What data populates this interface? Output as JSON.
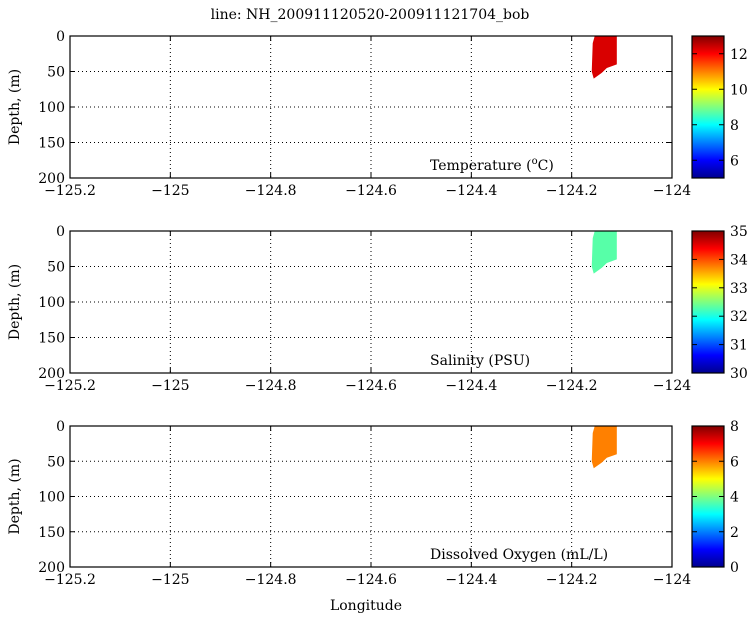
{
  "figure": {
    "title": "line: NH_200911120520-200911121704_bob",
    "xlabel": "Longitude",
    "ylabel": "Depth, (m)"
  },
  "chart_data": [
    {
      "type": "heatmap",
      "variable": "Temperature",
      "annotation": {
        "prefix": "Temperature (",
        "sup": "o",
        "suffix": "C)"
      },
      "xlim": [
        -125.2,
        -124
      ],
      "ylim": [
        200,
        0
      ],
      "y_inverted": true,
      "x_ticks": [
        "−125.2",
        "−125",
        "−124.8",
        "−124.6",
        "−124.4",
        "−124.2",
        "−124"
      ],
      "x_tick_values": [
        -125.2,
        -125,
        -124.8,
        -124.6,
        -124.4,
        -124.2,
        -124
      ],
      "y_ticks": [
        "0",
        "50",
        "100",
        "150",
        "200"
      ],
      "y_tick_values": [
        0,
        50,
        100,
        150,
        200
      ],
      "grid": true,
      "colorbar": {
        "range": [
          5,
          13
        ],
        "ticks": [
          "6",
          "8",
          "10",
          "12"
        ],
        "tick_values": [
          6,
          8,
          10,
          12
        ],
        "colormap": "jet"
      },
      "data_region": {
        "lon_range": [
          -124.16,
          -124.11
        ],
        "depth_range": [
          0,
          60
        ],
        "value": 12.3
      }
    },
    {
      "type": "heatmap",
      "variable": "Salinity",
      "annotation": {
        "prefix": "Salinity (PSU)",
        "sup": "",
        "suffix": ""
      },
      "xlim": [
        -125.2,
        -124
      ],
      "ylim": [
        200,
        0
      ],
      "y_inverted": true,
      "x_ticks": [
        "−125.2",
        "−125",
        "−124.8",
        "−124.6",
        "−124.4",
        "−124.2",
        "−124"
      ],
      "x_tick_values": [
        -125.2,
        -125,
        -124.8,
        -124.6,
        -124.4,
        -124.2,
        -124
      ],
      "y_ticks": [
        "0",
        "50",
        "100",
        "150",
        "200"
      ],
      "y_tick_values": [
        0,
        50,
        100,
        150,
        200
      ],
      "grid": true,
      "colorbar": {
        "range": [
          30,
          35
        ],
        "ticks": [
          "30",
          "31",
          "32",
          "33",
          "34",
          "35"
        ],
        "tick_values": [
          30,
          31,
          32,
          33,
          34,
          35
        ],
        "colormap": "jet"
      },
      "data_region": {
        "lon_range": [
          -124.16,
          -124.11
        ],
        "depth_range": [
          0,
          60
        ],
        "value": 32.3
      }
    },
    {
      "type": "heatmap",
      "variable": "Dissolved Oxygen",
      "annotation": {
        "prefix": "Dissolved Oxygen (mL/L)",
        "sup": "",
        "suffix": ""
      },
      "xlim": [
        -125.2,
        -124
      ],
      "ylim": [
        200,
        0
      ],
      "y_inverted": true,
      "x_ticks": [
        "−125.2",
        "−125",
        "−124.8",
        "−124.6",
        "−124.4",
        "−124.2",
        "−124"
      ],
      "x_tick_values": [
        -125.2,
        -125,
        -124.8,
        -124.6,
        -124.4,
        -124.2,
        -124
      ],
      "y_ticks": [
        "0",
        "50",
        "100",
        "150",
        "200"
      ],
      "y_tick_values": [
        0,
        50,
        100,
        150,
        200
      ],
      "grid": true,
      "colorbar": {
        "range": [
          0,
          8
        ],
        "ticks": [
          "0",
          "2",
          "4",
          "6",
          "8"
        ],
        "tick_values": [
          0,
          2,
          4,
          6,
          8
        ],
        "colormap": "jet"
      },
      "data_region": {
        "lon_range": [
          -124.16,
          -124.11
        ],
        "depth_range": [
          0,
          60
        ],
        "value": 6.0
      }
    }
  ]
}
